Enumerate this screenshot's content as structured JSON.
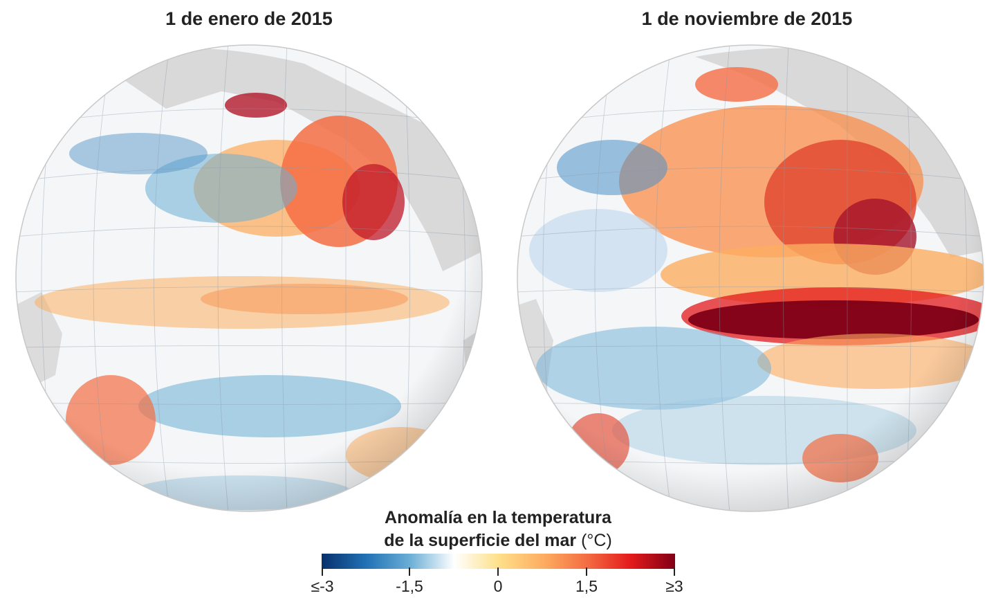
{
  "panels": [
    {
      "title": "1 de enero de 2015"
    },
    {
      "title": "1 de noviembre de 2015"
    }
  ],
  "legend": {
    "title_line1": "Anomalía en la temperatura",
    "title_line2": "de la superficie del mar",
    "unit": "(°C)",
    "ticks": [
      "≤-3",
      "-1,5",
      "0",
      "1,5",
      "≥3"
    ],
    "colors": [
      "#08306b",
      "#2171b5",
      "#6baed6",
      "#ffffff",
      "#fee08b",
      "#fdae61",
      "#f46d43",
      "#e31a1c",
      "#800016"
    ]
  }
}
